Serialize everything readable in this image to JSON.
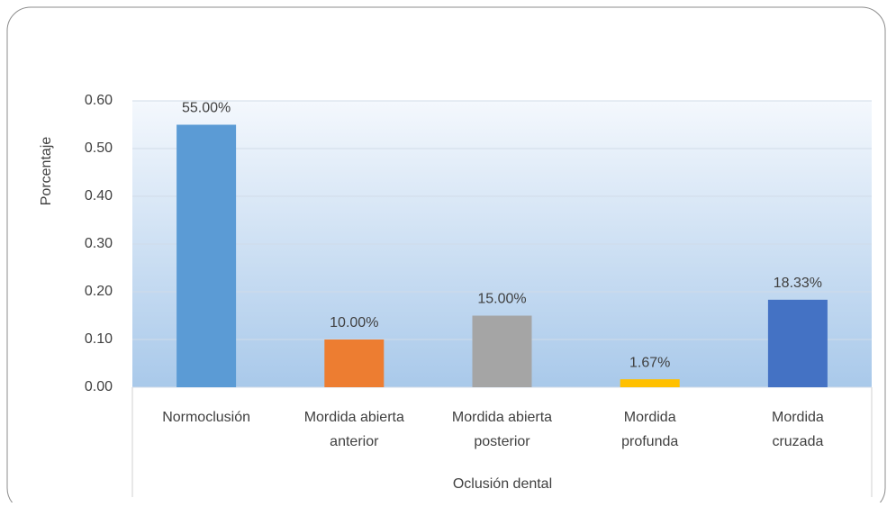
{
  "chart_data": {
    "type": "bar",
    "x_label": "Oclusión dental",
    "y_label": "Porcentaje",
    "categories": [
      "Normoclusión",
      "Mordida abierta anterior",
      "Mordida abierta posterior",
      "Mordida profunda",
      "Mordida cruzada"
    ],
    "values": [
      0.55,
      0.1,
      0.15,
      0.0167,
      0.1833
    ],
    "value_labels": [
      "55.00%",
      "10.00%",
      "15.00%",
      "1.67%",
      "18.33%"
    ],
    "colors": [
      "#5b9bd5",
      "#ed7d31",
      "#a5a5a5",
      "#ffc000",
      "#4472c4"
    ],
    "ylim": [
      0,
      0.6
    ],
    "yticks": [
      {
        "value": 0,
        "label": "0.00"
      },
      {
        "value": 0.1,
        "label": "0.10"
      },
      {
        "value": 0.2,
        "label": "0.20"
      },
      {
        "value": 0.3,
        "label": "0.30"
      },
      {
        "value": 0.4,
        "label": "0.40"
      },
      {
        "value": 0.5,
        "label": "0.50"
      },
      {
        "value": 0.6,
        "label": "0.60"
      }
    ],
    "grid": true
  }
}
